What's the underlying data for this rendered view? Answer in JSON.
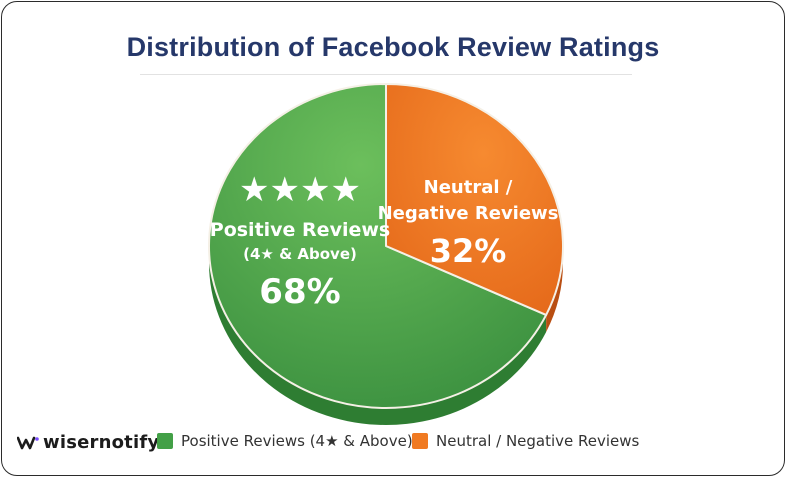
{
  "chart_data": {
    "type": "pie",
    "title": "Distribution of Facebook Review Ratings",
    "slices": [
      {
        "name": "Positive Reviews (4★ & Above)",
        "label_lines": [
          "Positive Reviews",
          "(4★ & Above)"
        ],
        "value": 68,
        "value_label": "68%",
        "color": "#43a047",
        "side_color": "#2e7d32"
      },
      {
        "name": "Neutral / Negative Reviews",
        "label_lines": [
          "Neutral /",
          "Negative Reviews"
        ],
        "value": 32,
        "value_label": "32%",
        "color": "#f07a22",
        "side_color": "#b94e12"
      }
    ],
    "stars": "★★★★",
    "star_color": "#ffc93a",
    "legend_position": "bottom"
  },
  "brand": {
    "name": "wisernotify"
  }
}
